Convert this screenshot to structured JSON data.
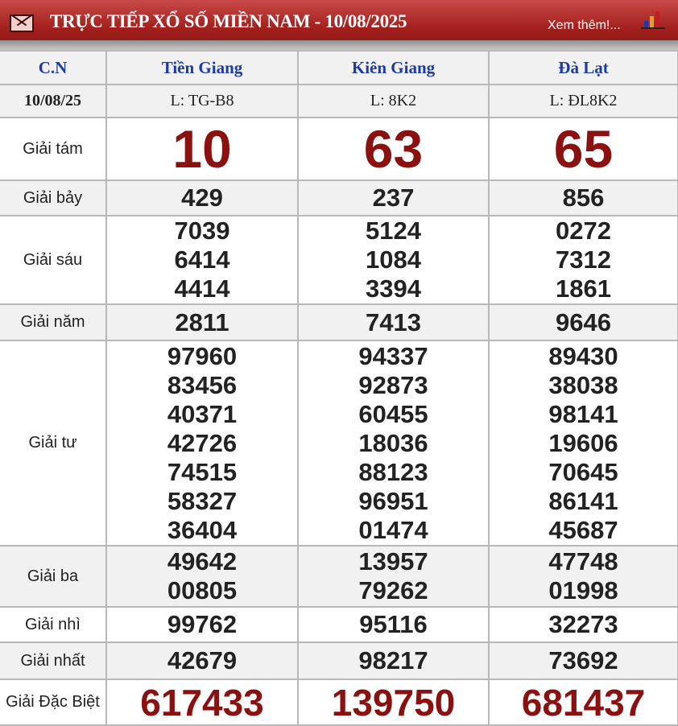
{
  "header": {
    "title": "TRỰC TIẾP XỔ SỐ MIỀN NAM - 10/08/2025",
    "more_link": "Xem thêm!...",
    "icons": [
      "mail-icon",
      "bar-chart-icon"
    ]
  },
  "table": {
    "day_label": "C.N",
    "date": "10/08/25",
    "provinces": [
      {
        "name": "Tiền Giang",
        "ticket": "L: TG-B8"
      },
      {
        "name": "Kiên Giang",
        "ticket": "L: 8K2"
      },
      {
        "name": "Đà Lạt",
        "ticket": "L: ĐL8K2"
      }
    ],
    "prizes": [
      {
        "label": "Giải tám",
        "values": [
          [
            "10"
          ],
          [
            "63"
          ],
          [
            "65"
          ]
        ]
      },
      {
        "label": "Giải bảy",
        "values": [
          [
            "429"
          ],
          [
            "237"
          ],
          [
            "856"
          ]
        ]
      },
      {
        "label": "Giải sáu",
        "values": [
          [
            "7039",
            "6414",
            "4414"
          ],
          [
            "5124",
            "1084",
            "3394"
          ],
          [
            "0272",
            "7312",
            "1861"
          ]
        ]
      },
      {
        "label": "Giải năm",
        "values": [
          [
            "2811"
          ],
          [
            "7413"
          ],
          [
            "9646"
          ]
        ]
      },
      {
        "label": "Giải tư",
        "values": [
          [
            "97960",
            "83456",
            "40371",
            "42726",
            "74515",
            "58327",
            "36404"
          ],
          [
            "94337",
            "92873",
            "60455",
            "18036",
            "88123",
            "96951",
            "01474"
          ],
          [
            "89430",
            "38038",
            "98141",
            "19606",
            "70645",
            "86141",
            "45687"
          ]
        ]
      },
      {
        "label": "Giải ba",
        "values": [
          [
            "49642",
            "00805"
          ],
          [
            "13957",
            "79262"
          ],
          [
            "47748",
            "01998"
          ]
        ]
      },
      {
        "label": "Giải nhì",
        "values": [
          [
            "99762"
          ],
          [
            "95116"
          ],
          [
            "32273"
          ]
        ]
      },
      {
        "label": "Giải nhất",
        "values": [
          [
            "42679"
          ],
          [
            "98217"
          ],
          [
            "73692"
          ]
        ]
      },
      {
        "label": "Giải Đặc Biệt",
        "values": [
          [
            "617433"
          ],
          [
            "139750"
          ],
          [
            "681437"
          ]
        ]
      }
    ]
  },
  "colors": {
    "header_red": "#a3201d",
    "province_blue": "#1d3aa8",
    "highlight_red": "#8b1111"
  }
}
